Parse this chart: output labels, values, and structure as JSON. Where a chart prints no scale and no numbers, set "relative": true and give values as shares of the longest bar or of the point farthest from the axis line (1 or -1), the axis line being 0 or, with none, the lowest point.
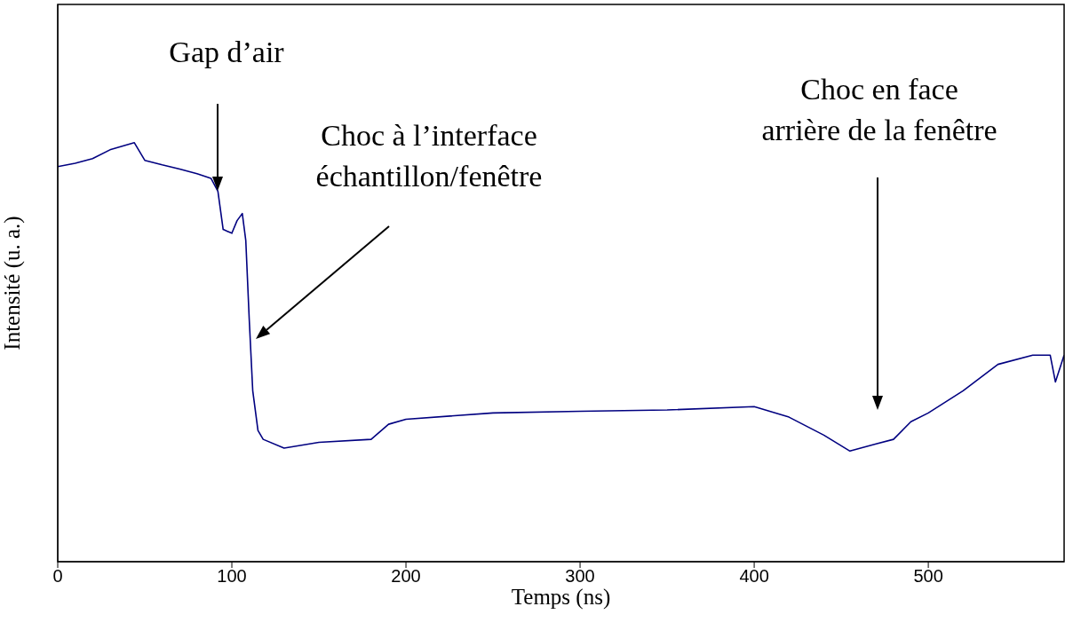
{
  "chart_data": {
    "type": "line",
    "relative": true,
    "xlabel": "Temps (ns)",
    "ylabel": "Intensité (u. a.)",
    "xlim": [
      0,
      578
    ],
    "xticks": [
      0,
      100,
      200,
      300,
      400,
      500
    ],
    "tick_labels": "x",
    "marker": "none",
    "line_style": "solid",
    "x": [
      0,
      10,
      20,
      30,
      44,
      50,
      60,
      70,
      80,
      88,
      92,
      95,
      100,
      103,
      106,
      108,
      110,
      112,
      115,
      118,
      130,
      150,
      180,
      190,
      200,
      250,
      300,
      350,
      400,
      420,
      440,
      455,
      470,
      480,
      490,
      500,
      520,
      540,
      560,
      570,
      573,
      578
    ],
    "series": [
      {
        "color": "#000080",
        "values": [
          0.943,
          0.951,
          0.962,
          0.983,
          1.0,
          0.958,
          0.947,
          0.937,
          0.926,
          0.915,
          0.884,
          0.793,
          0.784,
          0.814,
          0.831,
          0.767,
          0.577,
          0.408,
          0.313,
          0.292,
          0.271,
          0.285,
          0.292,
          0.328,
          0.34,
          0.355,
          0.359,
          0.362,
          0.37,
          0.345,
          0.302,
          0.264,
          0.281,
          0.292,
          0.334,
          0.355,
          0.408,
          0.471,
          0.493,
          0.493,
          0.429,
          0.493
        ]
      }
    ],
    "annotations": [
      "Gap d’air",
      "Choc à l’interface\néchantillon/fenêtre",
      "Choc en face\narrière de la fenêtre"
    ]
  }
}
